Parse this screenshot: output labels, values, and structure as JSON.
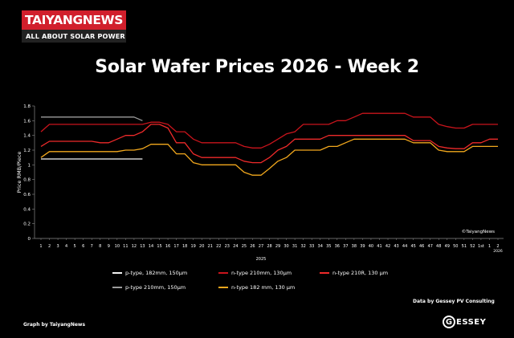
{
  "logo": {
    "brand": "TAIYANGNEWS",
    "tagline": "ALL ABOUT SOLAR POWER"
  },
  "footer": {
    "credit": "Graph by TaiyangNews",
    "source": "Data by Gessey PV Consulting",
    "gessey_logo": "ESSEY"
  },
  "colors": {
    "background": "#000000",
    "logo_red": "#d11f2c",
    "axis": "#8a8a8a"
  },
  "chart_data": {
    "type": "line",
    "title": "Solar Wafer Prices 2026 - Week 2",
    "ylabel": "Price RMB/Piece",
    "xlabel": "2025",
    "ylim": [
      0,
      1.8
    ],
    "yticks": [
      "0",
      "0.2",
      "0.4",
      "0.6",
      "0.8",
      "1",
      "1.2",
      "1.4",
      "1.6",
      "1.8"
    ],
    "categories": [
      "1",
      "2",
      "3",
      "4",
      "5",
      "6",
      "7",
      "8",
      "9",
      "10",
      "11",
      "12",
      "13",
      "14",
      "15",
      "16",
      "17",
      "18",
      "19",
      "20",
      "21",
      "22",
      "23",
      "24",
      "25",
      "26",
      "27",
      "28",
      "29",
      "30",
      "31",
      "32",
      "33",
      "34",
      "35",
      "36",
      "37",
      "38",
      "39",
      "40",
      "41",
      "42",
      "43",
      "44",
      "45",
      "46",
      "47",
      "48",
      "49",
      "50",
      "51",
      "52",
      "1st",
      "1",
      "2"
    ],
    "annotation": "©TaiyangNews",
    "year_label_right": "2026",
    "legend_position": "bottom",
    "series": [
      {
        "name": "p-type, 182mm, 150µm",
        "color": "#f2f2f2",
        "values": [
          1.08,
          1.08,
          1.08,
          1.08,
          1.08,
          1.08,
          1.08,
          1.08,
          1.08,
          1.08,
          1.08,
          1.08,
          1.08,
          null,
          null,
          null,
          null,
          null,
          null,
          null,
          null,
          null,
          null,
          null,
          null,
          null,
          null,
          null,
          null,
          null,
          null,
          null,
          null,
          null,
          null,
          null,
          null,
          null,
          null,
          null,
          null,
          null,
          null,
          null,
          null,
          null,
          null,
          null,
          null,
          null,
          null,
          null,
          null,
          null,
          null
        ]
      },
      {
        "name": "p-type 210mm, 150µm",
        "color": "#9c9c9c",
        "values": [
          1.65,
          1.65,
          1.65,
          1.65,
          1.65,
          1.65,
          1.65,
          1.65,
          1.65,
          1.65,
          1.65,
          1.65,
          1.6,
          null,
          null,
          null,
          null,
          null,
          null,
          null,
          null,
          null,
          null,
          null,
          null,
          null,
          null,
          null,
          null,
          null,
          null,
          null,
          null,
          null,
          null,
          null,
          null,
          null,
          null,
          null,
          null,
          null,
          null,
          null,
          null,
          null,
          null,
          null,
          null,
          null,
          null,
          null,
          null,
          null,
          null
        ]
      },
      {
        "name": "n-type 210mm, 130µm",
        "color": "#c9141c",
        "values": [
          1.45,
          1.55,
          1.55,
          1.55,
          1.55,
          1.55,
          1.55,
          1.55,
          1.55,
          1.55,
          1.55,
          1.55,
          1.55,
          1.58,
          1.58,
          1.55,
          1.45,
          1.45,
          1.35,
          1.3,
          1.3,
          1.3,
          1.3,
          1.3,
          1.25,
          1.23,
          1.23,
          1.28,
          1.35,
          1.42,
          1.45,
          1.55,
          1.55,
          1.55,
          1.55,
          1.6,
          1.6,
          1.65,
          1.7,
          1.7,
          1.7,
          1.7,
          1.7,
          1.7,
          1.65,
          1.65,
          1.65,
          1.55,
          1.52,
          1.5,
          1.5,
          1.55,
          1.55,
          1.55,
          1.55
        ]
      },
      {
        "name": "n-type 182 mm, 130 µm",
        "color": "#f2a81d",
        "values": [
          1.1,
          1.18,
          1.18,
          1.18,
          1.18,
          1.18,
          1.18,
          1.18,
          1.18,
          1.18,
          1.2,
          1.2,
          1.22,
          1.28,
          1.28,
          1.28,
          1.15,
          1.15,
          1.03,
          1.0,
          1.0,
          1.0,
          1.0,
          1.0,
          0.9,
          0.86,
          0.86,
          0.95,
          1.05,
          1.1,
          1.2,
          1.2,
          1.2,
          1.2,
          1.25,
          1.25,
          1.3,
          1.35,
          1.35,
          1.35,
          1.35,
          1.35,
          1.35,
          1.35,
          1.3,
          1.3,
          1.3,
          1.2,
          1.18,
          1.18,
          1.18,
          1.25,
          1.25,
          1.25,
          1.25
        ]
      },
      {
        "name": "n-type 210R, 130 µm",
        "color": "#ee2a2a",
        "values": [
          1.25,
          1.32,
          1.32,
          1.32,
          1.32,
          1.32,
          1.32,
          1.3,
          1.3,
          1.35,
          1.4,
          1.4,
          1.45,
          1.55,
          1.55,
          1.5,
          1.3,
          1.3,
          1.15,
          1.1,
          1.1,
          1.1,
          1.1,
          1.1,
          1.05,
          1.03,
          1.03,
          1.1,
          1.2,
          1.25,
          1.35,
          1.35,
          1.35,
          1.35,
          1.4,
          1.4,
          1.4,
          1.4,
          1.4,
          1.4,
          1.4,
          1.4,
          1.4,
          1.4,
          1.33,
          1.33,
          1.33,
          1.25,
          1.23,
          1.22,
          1.22,
          1.3,
          1.3,
          1.35,
          1.35
        ]
      }
    ]
  }
}
